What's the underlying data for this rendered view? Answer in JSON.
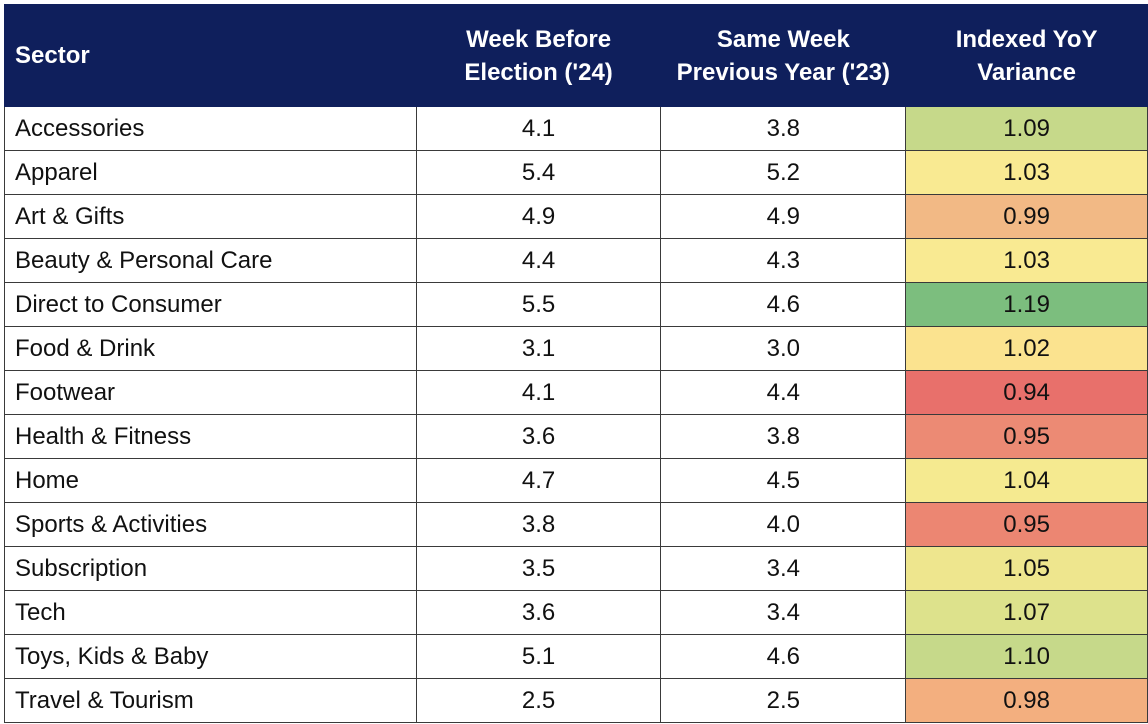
{
  "table": {
    "headers": [
      "Sector",
      "Week Before Election ('24)",
      "Same Week Previous Year ('23)",
      "Indexed YoY Variance"
    ]
  },
  "chart_data": {
    "type": "table",
    "columns": [
      "Sector",
      "Week Before Election ('24)",
      "Same Week Previous Year ('23)",
      "Indexed YoY Variance"
    ],
    "rows": [
      {
        "sector": "Accessories",
        "week_before": "4.1",
        "prev_year": "3.8",
        "variance": "1.09",
        "color": "#c6d98a"
      },
      {
        "sector": "Apparel",
        "week_before": "5.4",
        "prev_year": "5.2",
        "variance": "1.03",
        "color": "#f9ea92"
      },
      {
        "sector": "Art & Gifts",
        "week_before": "4.9",
        "prev_year": "4.9",
        "variance": "0.99",
        "color": "#f2b985"
      },
      {
        "sector": "Beauty & Personal Care",
        "week_before": "4.4",
        "prev_year": "4.3",
        "variance": "1.03",
        "color": "#f9ea92"
      },
      {
        "sector": "Direct to Consumer",
        "week_before": "5.5",
        "prev_year": "4.6",
        "variance": "1.19",
        "color": "#7cbe7e"
      },
      {
        "sector": "Food & Drink",
        "week_before": "3.1",
        "prev_year": "3.0",
        "variance": "1.02",
        "color": "#fbe38f"
      },
      {
        "sector": "Footwear",
        "week_before": "4.1",
        "prev_year": "4.4",
        "variance": "0.94",
        "color": "#e8706b"
      },
      {
        "sector": "Health & Fitness",
        "week_before": "3.6",
        "prev_year": "3.8",
        "variance": "0.95",
        "color": "#ec8a74"
      },
      {
        "sector": "Home",
        "week_before": "4.7",
        "prev_year": "4.5",
        "variance": "1.04",
        "color": "#f5ea90"
      },
      {
        "sector": "Sports & Activities",
        "week_before": "3.8",
        "prev_year": "4.0",
        "variance": "0.95",
        "color": "#ec8672"
      },
      {
        "sector": "Subscription",
        "week_before": "3.5",
        "prev_year": "3.4",
        "variance": "1.05",
        "color": "#eee68e"
      },
      {
        "sector": "Tech",
        "week_before": "3.6",
        "prev_year": "3.4",
        "variance": "1.07",
        "color": "#dde28c"
      },
      {
        "sector": "Toys, Kids & Baby",
        "week_before": "5.1",
        "prev_year": "4.6",
        "variance": "1.10",
        "color": "#c6d98a"
      },
      {
        "sector": "Travel & Tourism",
        "week_before": "2.5",
        "prev_year": "2.5",
        "variance": "0.98",
        "color": "#f3af7f"
      }
    ]
  }
}
